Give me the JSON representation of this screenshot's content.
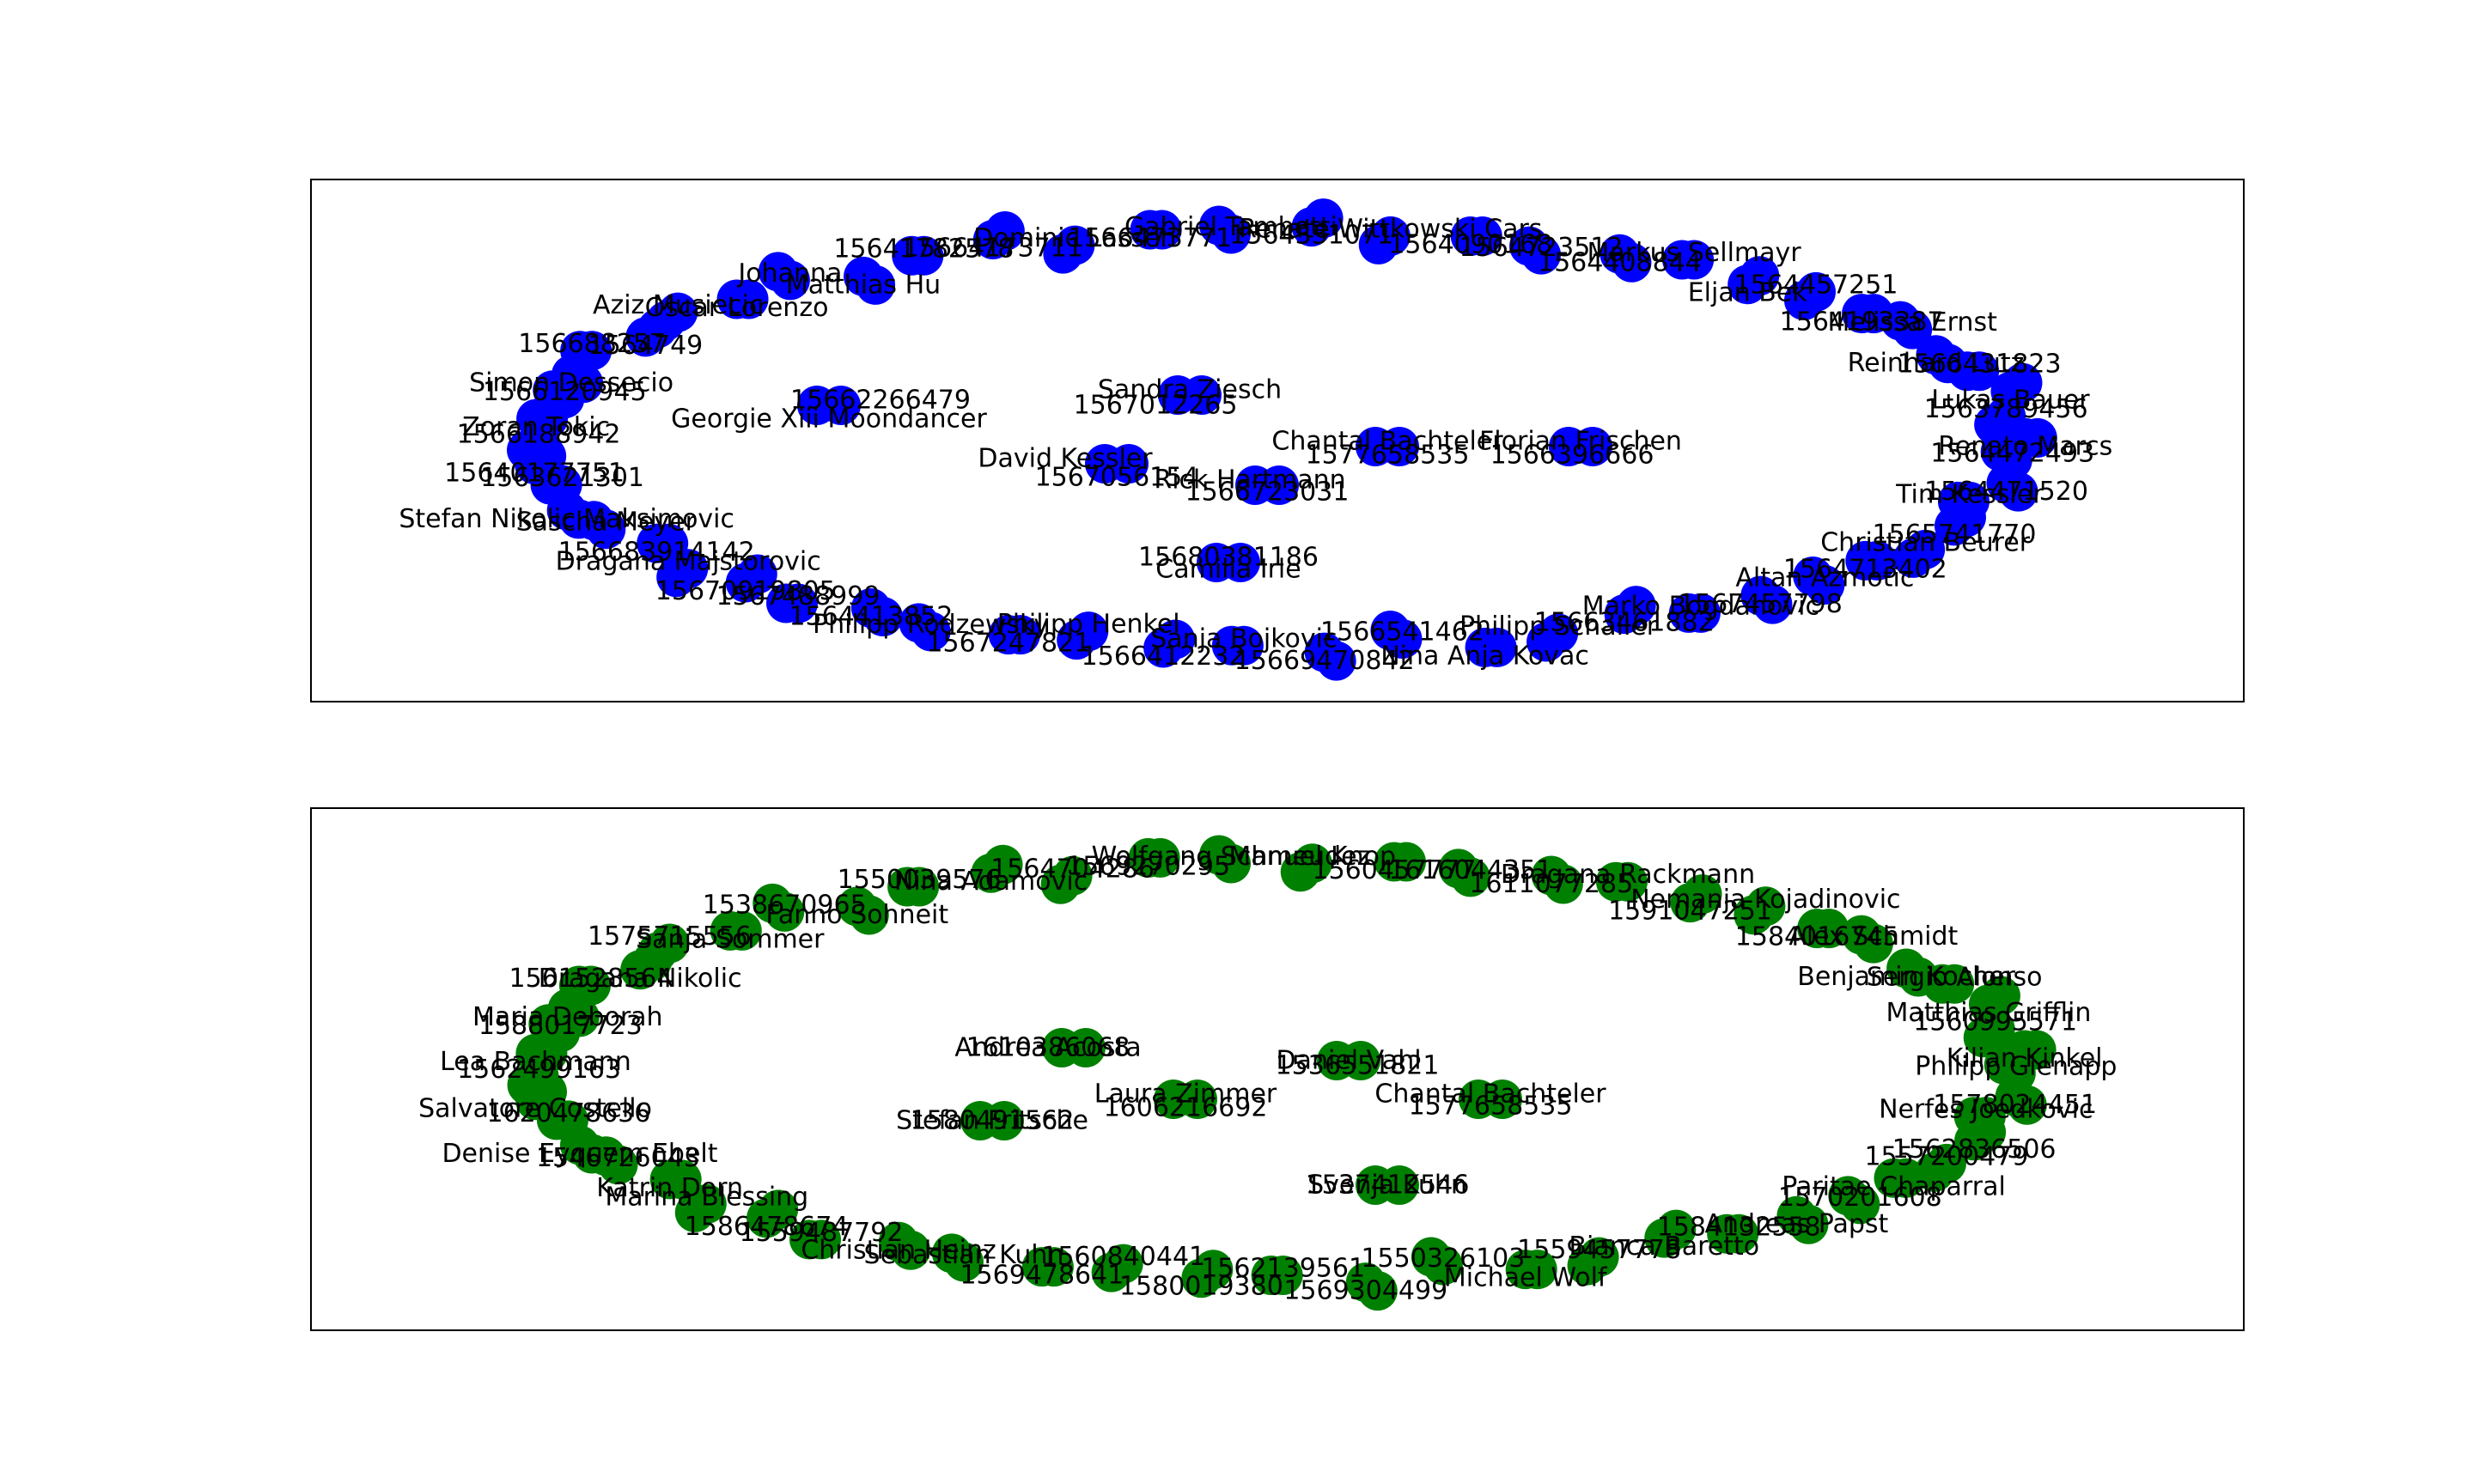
{
  "panels": [
    {
      "node_color": "#0000ff",
      "ring_labels": [
        "Gabriel Tambetti",
        "1566473771",
        "Dominic Lassen",
        "15664173711",
        "15641782578",
        "Matthias Hu",
        "Johanna",
        "Oscar Lorenzo",
        "Aziz Musiecic",
        "1564749",
        "156688257",
        "Simon Dessecio",
        "1566120945",
        "Zoran Tokic",
        "1566188942",
        "15640177751",
        "1563621301",
        "Stefan Nikolic Maksimovic",
        "Sascha Meyer",
        "156683914142",
        "Dragana Majstorovic",
        "15670919805",
        "1567488999",
        "1564413852",
        "Philipp Rodzewsky",
        "1567247821",
        "Philipp Henkel",
        "1566412232",
        "Sanja Bojkovic",
        "15669470842",
        "1566541462",
        "Nina Anja Kovac",
        "Philipp Schaller",
        "15663461882",
        "Marko Bogdanovic",
        "1567457798",
        "Altan Azmotic",
        "1564713402",
        "Christian Beurer",
        "1565741770",
        "Tim Kessler",
        "1564471520",
        "1564472493",
        "Renato Marcs",
        "1563789456",
        "Lukas Bauer",
        "1566431823",
        "Reinhard Lutz",
        "Melissa Ernst",
        "1564193387",
        "1564457251",
        "Eljan Bek",
        "Markus Sellmayr",
        "1564408844",
        "1564723512",
        "1564090168",
        "Renate Wittkowski Cars",
        "1564331071"
      ],
      "inner": [
        {
          "a": "15662266479",
          "b": "Georgie Xiii Moondancer"
        },
        {
          "a": "Sandra Ziesch",
          "b": "1567012265"
        },
        {
          "a": "David Kessler",
          "b": "1567056154"
        },
        {
          "a": "Rick Hartmann",
          "b": "1566723031"
        },
        {
          "a": "Chantal Bachteler",
          "b": "1577658535"
        },
        {
          "a": "Florian Frischen",
          "b": "1566396666"
        },
        {
          "a": "15680381186",
          "b": "Camilla Irle"
        }
      ]
    },
    {
      "node_color": "#008000",
      "ring_labels": [
        "Wolfgang Schmeudez",
        "1569270295",
        "1564704286",
        "Nina Adamovic",
        "1550039576",
        "Fanno Sohneit",
        "1538670965",
        "Sanja Sommer",
        "1575715556",
        "Dragana Nikolic",
        "1561528564",
        "Maria Deborah",
        "1588017723",
        "Lea Bachmann",
        "1562499163",
        "Salvatore Costello",
        "1620478636",
        "Denise Eyquem Ebelt",
        "1546726043",
        "Katrin Dorn",
        "Marina Blessing",
        "1586478674",
        "1559487792",
        "Christian Heinz",
        "Sebastian Kuhn",
        "1569478641",
        "1560840441",
        "1580019380",
        "1562139561",
        "1569304499",
        "1550326103",
        "Michael Wolf",
        "1559457778",
        "Bianca Baretto",
        "1584132558",
        "Andreas Papst",
        "1570201608",
        "Paritae Chaparral",
        "1557200479",
        "1562836506",
        "Nerfes Joedkovic",
        "1578024451",
        "Philipp Gienapp",
        "Kilian Kinkel",
        "1560995571",
        "Matthias Grifflin",
        "Sergio Alonso",
        "Benjamin Kocher",
        "Alex Schmidt",
        "1584016745",
        "Nemanja Kojadinovic",
        "1591047251",
        "Dragana Rackmann",
        "1611077285",
        "1616044351",
        "1560457777",
        "Manuel Knop"
      ],
      "inner": [
        {
          "a": "Andrea Acosta",
          "b": "1610386068"
        },
        {
          "a": "Daniel Vahl",
          "b": "1536551821"
        },
        {
          "a": "Laura Zimmer",
          "b": "1606216692"
        },
        {
          "a": "Chantal Bachteler",
          "b": "1577658535"
        },
        {
          "a": "Stefan Fritsche",
          "b": "1580491562"
        },
        {
          "a": "Svenja Kuhn",
          "b": "1537412546"
        }
      ]
    }
  ]
}
